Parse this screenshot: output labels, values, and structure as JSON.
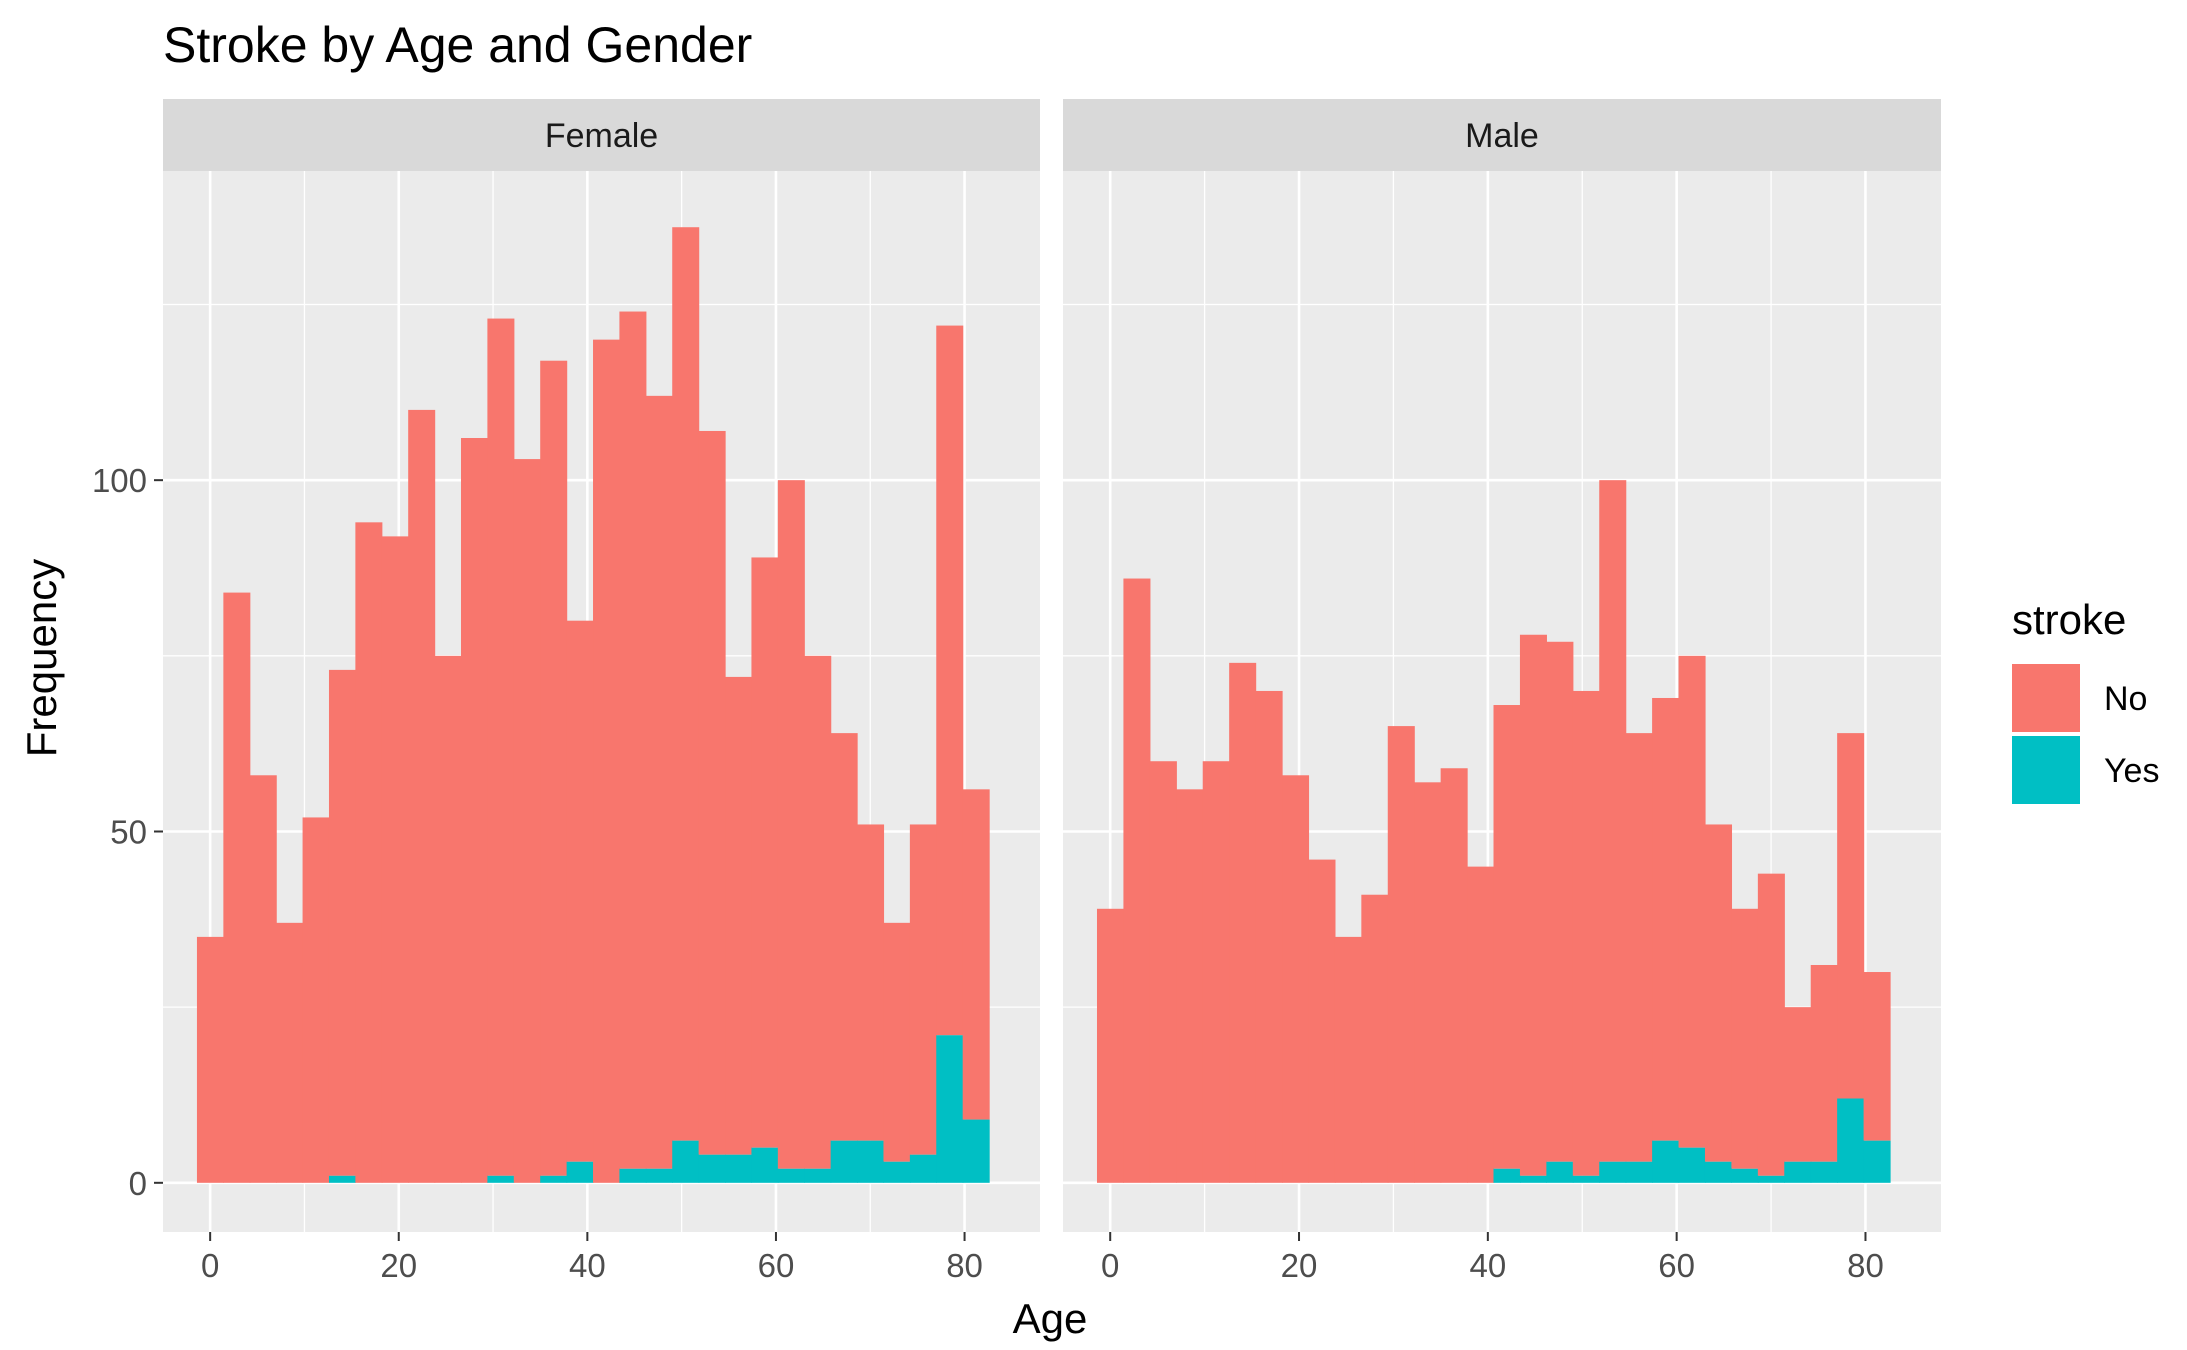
{
  "chart_data": {
    "type": "bar",
    "title": "Stroke by Age and Gender",
    "xlabel": "Age",
    "ylabel": "Frequency",
    "x_ticks": [
      0,
      20,
      40,
      60,
      80
    ],
    "y_ticks": [
      0,
      50,
      100
    ],
    "xlim": [
      -5,
      88
    ],
    "ylim": [
      -7,
      144
    ],
    "bin_width": 2.8,
    "bin_start": -1.4,
    "stacking": "stacked",
    "grid": true,
    "legend": {
      "title": "stroke",
      "placement": "right",
      "entries": [
        {
          "label": "No",
          "color": "#F8766D"
        },
        {
          "label": "Yes",
          "color": "#00BFC4"
        }
      ]
    },
    "panels": [
      {
        "name": "Female",
        "x": [
          0,
          2.8,
          5.6,
          8.4,
          11.2,
          14,
          16.8,
          19.6,
          22.4,
          25.2,
          28,
          30.8,
          33.6,
          36.4,
          39.2,
          42,
          44.8,
          47.6,
          50.4,
          53.2,
          56,
          58.8,
          61.6,
          64.4,
          67.2,
          70,
          72.8,
          75.6,
          78.4,
          81.2
        ],
        "series": [
          {
            "name": "No",
            "values": [
              35,
              84,
              58,
              37,
              52,
              72,
              94,
              92,
              110,
              75,
              106,
              122,
              103,
              116,
              77,
              120,
              122,
              110,
              130,
              103,
              68,
              84,
              98,
              73,
              58,
              45,
              34,
              47,
              101,
              47
            ]
          },
          {
            "name": "Yes",
            "values": [
              0,
              0,
              0,
              0,
              0,
              1,
              0,
              0,
              0,
              0,
              0,
              1,
              0,
              1,
              3,
              0,
              2,
              2,
              6,
              4,
              4,
              5,
              2,
              2,
              6,
              6,
              3,
              4,
              21,
              9
            ]
          }
        ]
      },
      {
        "name": "Male",
        "x": [
          0,
          2.8,
          5.6,
          8.4,
          11.2,
          14,
          16.8,
          19.6,
          22.4,
          25.2,
          28,
          30.8,
          33.6,
          36.4,
          39.2,
          42,
          44.8,
          47.6,
          50.4,
          53.2,
          56,
          58.8,
          61.6,
          64.4,
          67.2,
          70,
          72.8,
          75.6,
          78.4,
          81.2
        ],
        "series": [
          {
            "name": "No",
            "values": [
              39,
              86,
              60,
              56,
              60,
              74,
              70,
              58,
              46,
              35,
              41,
              65,
              57,
              59,
              45,
              66,
              77,
              74,
              69,
              97,
              61,
              63,
              70,
              48,
              37,
              43,
              22,
              28,
              52,
              24
            ]
          },
          {
            "name": "Yes",
            "values": [
              0,
              0,
              0,
              0,
              0,
              0,
              0,
              0,
              0,
              0,
              0,
              0,
              0,
              0,
              0,
              2,
              1,
              3,
              1,
              3,
              3,
              6,
              5,
              3,
              2,
              1,
              3,
              3,
              12,
              6
            ]
          }
        ]
      }
    ]
  }
}
